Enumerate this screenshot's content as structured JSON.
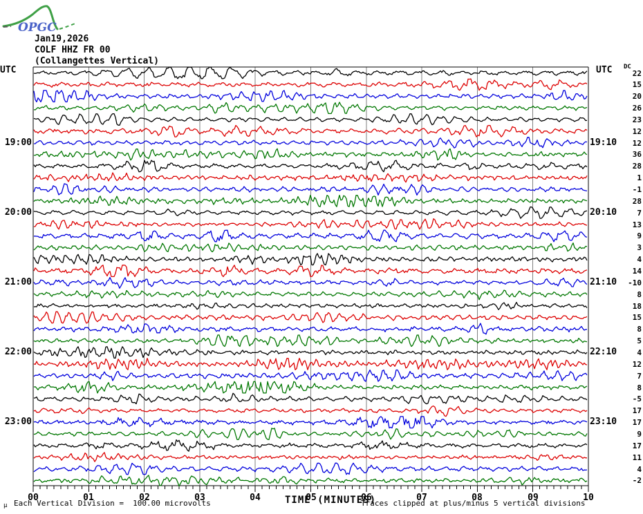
{
  "logo": {
    "text": "OPGC",
    "text_color": "#4a62c8",
    "curve_color": "#3fa046"
  },
  "header": {
    "date": "Jan19,2026",
    "station": "COLF HHZ FR 00",
    "description": "(Collangettes Vertical)"
  },
  "left_axis": {
    "utc_label": "UTC",
    "hour_labels": [
      {
        "row": 6,
        "text": "19:00"
      },
      {
        "row": 12,
        "text": "20:00"
      },
      {
        "row": 18,
        "text": "21:00"
      },
      {
        "row": 24,
        "text": "22:00"
      },
      {
        "row": 30,
        "text": "23:00"
      }
    ]
  },
  "right_axis": {
    "utc_label": "UTC",
    "dc_label": "DC",
    "hour_labels": [
      {
        "row": 6,
        "text": "19:10"
      },
      {
        "row": 12,
        "text": "20:10"
      },
      {
        "row": 18,
        "text": "21:10"
      },
      {
        "row": 24,
        "text": "22:10"
      },
      {
        "row": 30,
        "text": "23:10"
      }
    ]
  },
  "x_axis": {
    "tick_labels": [
      "00",
      "01",
      "02",
      "03",
      "04",
      "05",
      "06",
      "07",
      "08",
      "09",
      "10"
    ],
    "minor_ticks_per_interval": 7,
    "title": "TIME (MINUTES)"
  },
  "footer": {
    "left_note": "Each Vertical Division =  100.00 microvolts",
    "right_note": "Traces clipped at plus/minus 5 vertical divisions",
    "corner_glyph": "µ"
  },
  "chart_data": {
    "type": "line",
    "subtype": "helicorder-seismogram",
    "title": "COLF HHZ FR 00 (Collangettes Vertical) Jan19,2026",
    "xlabel": "TIME (MINUTES)",
    "x_range": [
      0,
      10
    ],
    "minutes_per_row": 10,
    "grid": "vertical gray line at every minute",
    "legend_position": "none",
    "amplitude_note": "Each Vertical Division = 100.00 microvolts; traces clipped at plus/minus 5 vertical divisions",
    "trace_colors": {
      "black": "#000000",
      "red": "#dd0000",
      "blue": "#0000dd",
      "green": "#007700"
    },
    "grid_color": "#808080",
    "rows": [
      {
        "start": "18:00",
        "end": "18:10",
        "color": "black",
        "dc": 22
      },
      {
        "start": "18:10",
        "end": "18:20",
        "color": "red",
        "dc": 15
      },
      {
        "start": "18:20",
        "end": "18:30",
        "color": "blue",
        "dc": 20
      },
      {
        "start": "18:30",
        "end": "18:40",
        "color": "green",
        "dc": 26
      },
      {
        "start": "18:40",
        "end": "18:50",
        "color": "black",
        "dc": 23
      },
      {
        "start": "18:50",
        "end": "19:00",
        "color": "red",
        "dc": 12
      },
      {
        "start": "19:00",
        "end": "19:10",
        "color": "blue",
        "dc": 12
      },
      {
        "start": "19:10",
        "end": "19:20",
        "color": "green",
        "dc": 36
      },
      {
        "start": "19:20",
        "end": "19:30",
        "color": "black",
        "dc": 28
      },
      {
        "start": "19:30",
        "end": "19:40",
        "color": "red",
        "dc": 1
      },
      {
        "start": "19:40",
        "end": "19:50",
        "color": "blue",
        "dc": -1
      },
      {
        "start": "19:50",
        "end": "20:00",
        "color": "green",
        "dc": 28
      },
      {
        "start": "20:00",
        "end": "20:10",
        "color": "black",
        "dc": 7
      },
      {
        "start": "20:10",
        "end": "20:20",
        "color": "red",
        "dc": 13
      },
      {
        "start": "20:20",
        "end": "20:30",
        "color": "blue",
        "dc": 9
      },
      {
        "start": "20:30",
        "end": "20:40",
        "color": "green",
        "dc": 3
      },
      {
        "start": "20:40",
        "end": "20:50",
        "color": "black",
        "dc": 4
      },
      {
        "start": "20:50",
        "end": "21:00",
        "color": "red",
        "dc": 14
      },
      {
        "start": "21:00",
        "end": "21:10",
        "color": "blue",
        "dc": -10
      },
      {
        "start": "21:10",
        "end": "21:20",
        "color": "green",
        "dc": 8
      },
      {
        "start": "21:20",
        "end": "21:30",
        "color": "black",
        "dc": 18
      },
      {
        "start": "21:30",
        "end": "21:40",
        "color": "red",
        "dc": 15
      },
      {
        "start": "21:40",
        "end": "21:50",
        "color": "blue",
        "dc": 8
      },
      {
        "start": "21:50",
        "end": "22:00",
        "color": "green",
        "dc": 5
      },
      {
        "start": "22:00",
        "end": "22:10",
        "color": "black",
        "dc": 4
      },
      {
        "start": "22:10",
        "end": "22:20",
        "color": "red",
        "dc": 12
      },
      {
        "start": "22:20",
        "end": "22:30",
        "color": "blue",
        "dc": 7
      },
      {
        "start": "22:30",
        "end": "22:40",
        "color": "green",
        "dc": 8
      },
      {
        "start": "22:40",
        "end": "22:50",
        "color": "black",
        "dc": -5
      },
      {
        "start": "22:50",
        "end": "23:00",
        "color": "red",
        "dc": 17
      },
      {
        "start": "23:00",
        "end": "23:10",
        "color": "blue",
        "dc": 17
      },
      {
        "start": "23:10",
        "end": "23:20",
        "color": "green",
        "dc": 9
      },
      {
        "start": "23:20",
        "end": "23:30",
        "color": "black",
        "dc": 17
      },
      {
        "start": "23:30",
        "end": "23:40",
        "color": "red",
        "dc": 11
      },
      {
        "start": "23:40",
        "end": "23:50",
        "color": "blue",
        "dc": 4
      },
      {
        "start": "23:50",
        "end": "24:00",
        "color": "green",
        "dc": -2
      }
    ]
  }
}
